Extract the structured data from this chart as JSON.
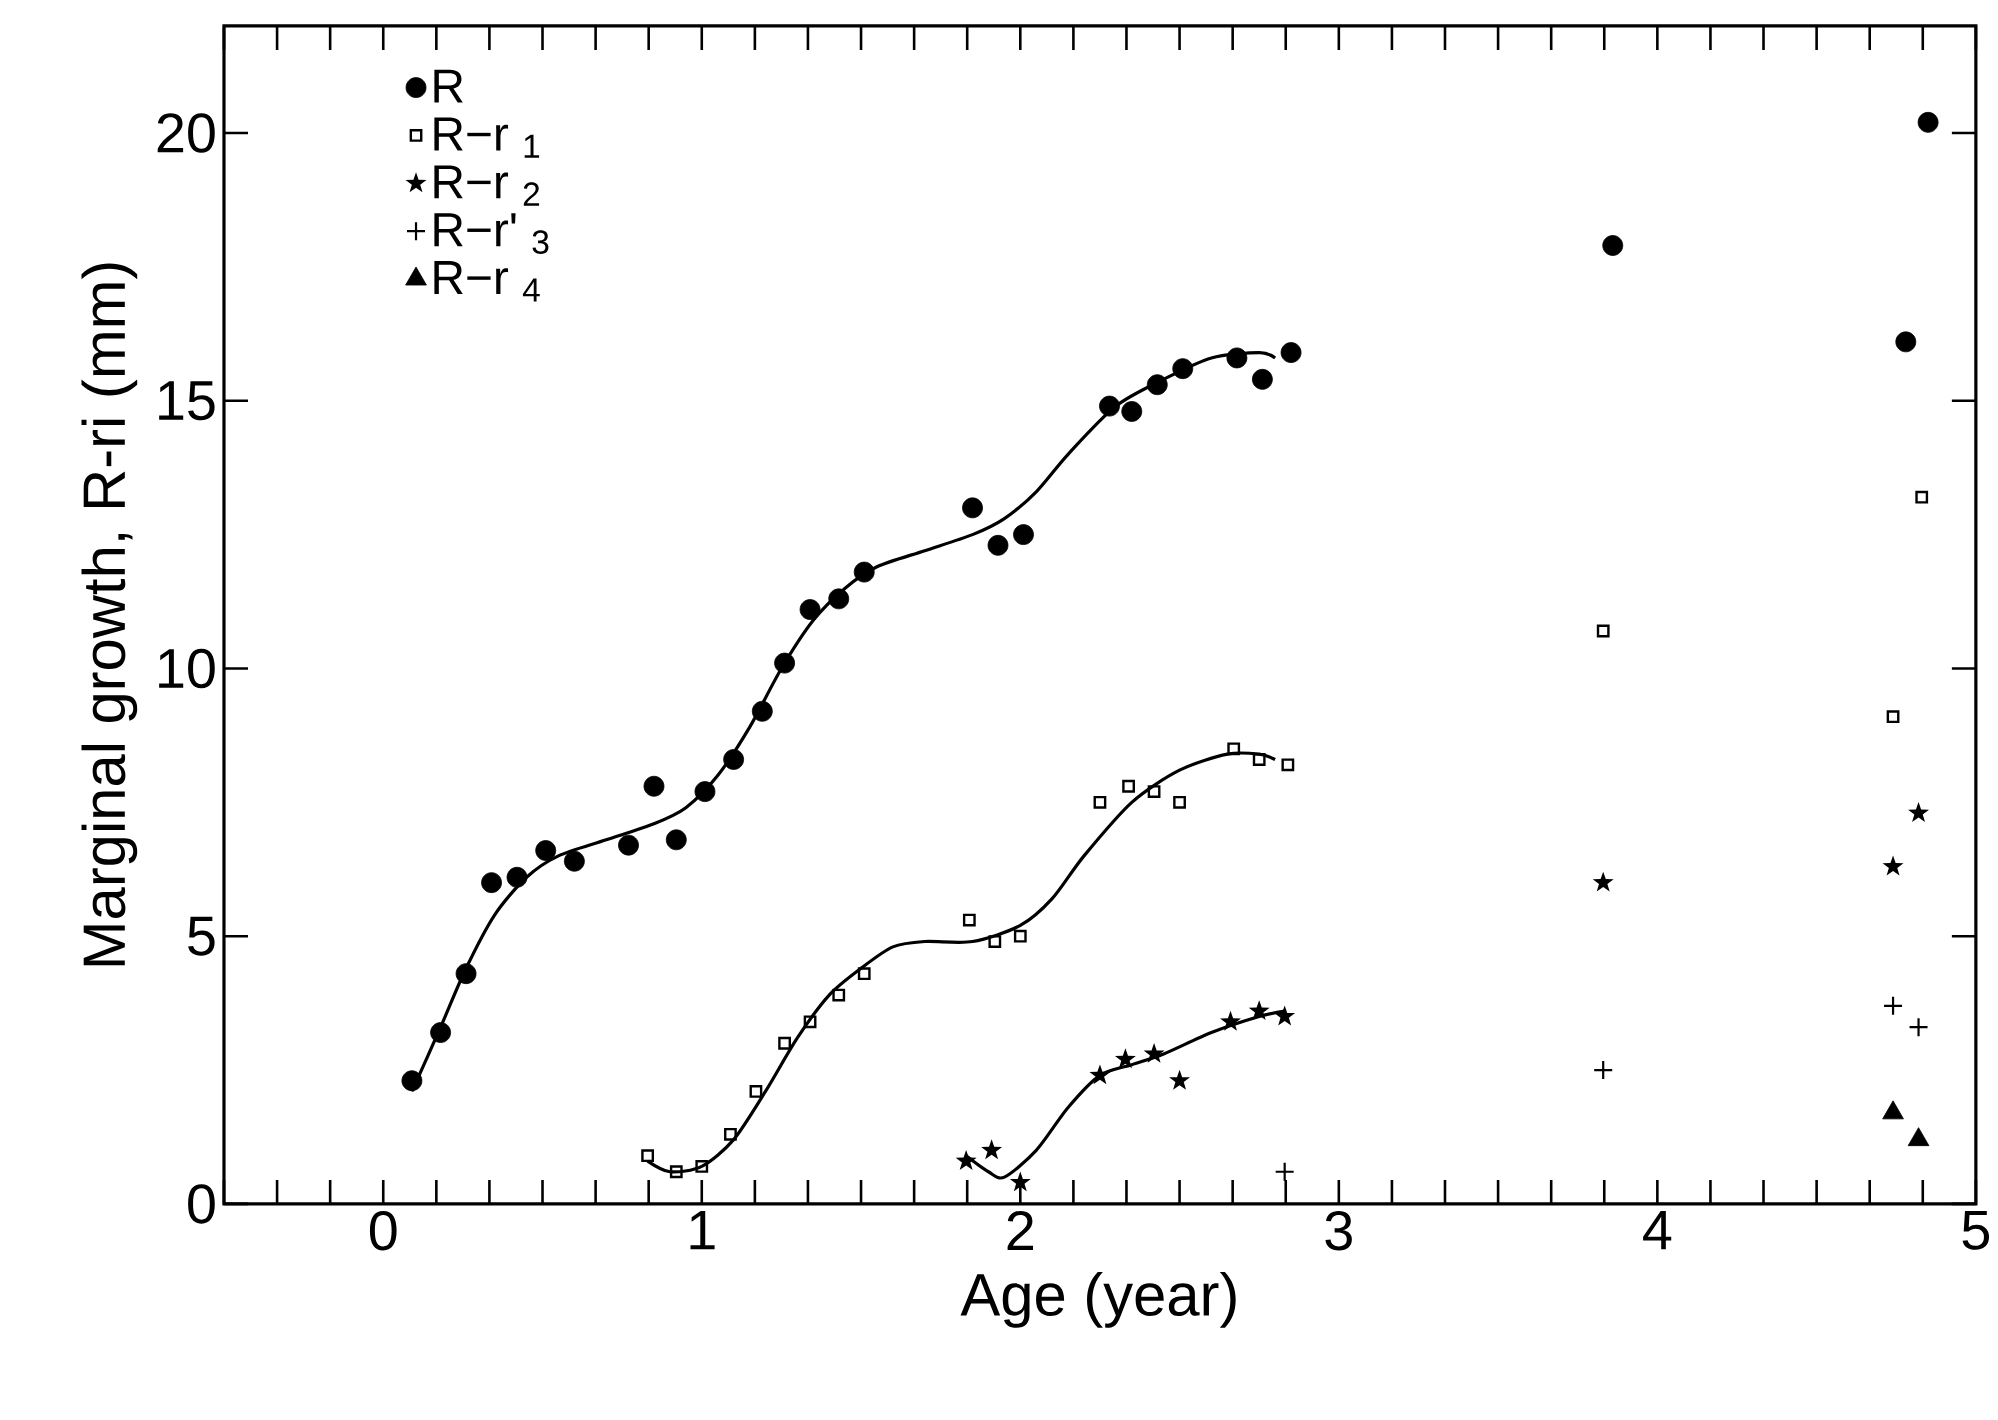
{
  "chart_data": {
    "type": "scatter",
    "xlabel": "Age (year)",
    "ylabel": "Marginal growth, R-ri (mm)",
    "xlim": [
      -0.5,
      5
    ],
    "ylim": [
      0,
      22
    ],
    "xticks": [
      {
        "value": -0.5,
        "label": null
      },
      {
        "value": -0.3333,
        "label": null
      },
      {
        "value": -0.1667,
        "label": null
      },
      0,
      {
        "value": 0.1667,
        "label": null
      },
      {
        "value": 0.3333,
        "label": null
      },
      {
        "value": 0.5,
        "label": null
      },
      {
        "value": 0.6667,
        "label": null
      },
      {
        "value": 0.8333,
        "label": null
      },
      1,
      {
        "value": 1.1667,
        "label": null
      },
      {
        "value": 1.3333,
        "label": null
      },
      {
        "value": 1.5,
        "label": null
      },
      {
        "value": 1.6667,
        "label": null
      },
      {
        "value": 1.8333,
        "label": null
      },
      2,
      {
        "value": 2.1667,
        "label": null
      },
      {
        "value": 2.3333,
        "label": null
      },
      {
        "value": 2.5,
        "label": null
      },
      {
        "value": 2.6667,
        "label": null
      },
      {
        "value": 2.8333,
        "label": null
      },
      3,
      {
        "value": 3.1667,
        "label": null
      },
      {
        "value": 3.3333,
        "label": null
      },
      {
        "value": 3.5,
        "label": null
      },
      {
        "value": 3.6667,
        "label": null
      },
      {
        "value": 3.8333,
        "label": null
      },
      4,
      {
        "value": 4.1667,
        "label": null
      },
      {
        "value": 4.3333,
        "label": null
      },
      {
        "value": 4.5,
        "label": null
      },
      {
        "value": 4.6667,
        "label": null
      },
      {
        "value": 4.8333,
        "label": null
      },
      5
    ],
    "yticks": [
      0,
      5,
      10,
      15,
      20
    ],
    "legend": "top left",
    "series": [
      {
        "name": "R",
        "color": "#000000",
        "marker": "circle",
        "x": [
          0.09,
          0.18,
          0.26,
          0.34,
          0.42,
          0.51,
          0.6,
          0.77,
          0.85,
          0.92,
          1.01,
          1.1,
          1.19,
          1.26,
          1.34,
          1.43,
          1.51,
          1.85,
          1.93,
          2.01,
          2.28,
          2.35,
          2.43,
          2.51,
          2.68,
          2.76,
          2.85,
          3.86,
          4.78,
          4.85
        ],
        "values": [
          2.3,
          3.2,
          4.3,
          6.0,
          6.1,
          6.6,
          6.4,
          6.7,
          7.8,
          6.8,
          7.7,
          8.3,
          9.2,
          10.1,
          11.1,
          11.3,
          11.8,
          13.0,
          12.3,
          12.5,
          14.9,
          14.8,
          15.3,
          15.6,
          15.8,
          15.4,
          15.9,
          17.9,
          16.1,
          20.2
        ]
      },
      {
        "name": "R−r $_{1}$",
        "color": "#000000",
        "marker": "square",
        "x": [
          0.83,
          0.92,
          1.0,
          1.09,
          1.17,
          1.26,
          1.34,
          1.43,
          1.51,
          1.84,
          1.92,
          2.0,
          2.25,
          2.34,
          2.42,
          2.5,
          2.67,
          2.75,
          2.84,
          3.83,
          4.74,
          4.83
        ],
        "values": [
          0.9,
          0.6,
          0.7,
          1.3,
          2.1,
          3.0,
          3.4,
          3.9,
          4.3,
          5.3,
          4.9,
          5.0,
          7.5,
          7.8,
          7.7,
          7.5,
          8.5,
          8.3,
          8.2,
          10.7,
          9.1,
          13.2
        ]
      },
      {
        "name": "R−r $_{2}$",
        "color": "#000000",
        "marker": "star",
        "x": [
          1.83,
          1.91,
          2.0,
          2.25,
          2.33,
          2.42,
          2.5,
          2.66,
          2.75,
          2.83,
          3.83,
          4.74,
          4.82
        ],
        "values": [
          0.8,
          1.0,
          0.4,
          2.4,
          2.7,
          2.8,
          2.3,
          3.4,
          3.6,
          3.5,
          6.0,
          6.3,
          7.3
        ]
      },
      {
        "name": "R−r' $_{3}$",
        "color": "#000000",
        "marker": "cross",
        "x": [
          2.83,
          3.83,
          4.74,
          4.82
        ],
        "values": [
          0.6,
          2.5,
          3.7,
          3.3
        ]
      },
      {
        "name": "R−r $_{4}$",
        "color": "#000000",
        "marker": "triangle",
        "x": [
          4.74,
          4.82
        ],
        "values": [
          1.7,
          1.2
        ]
      },
      {
        "type": "line",
        "color": "#000000",
        "x": [
          0.09,
          0.18,
          0.26,
          0.35,
          0.45,
          0.55,
          0.7,
          0.85,
          0.95,
          1.05,
          1.15,
          1.25,
          1.35,
          1.45,
          1.55,
          1.7,
          1.85,
          1.95,
          2.05,
          2.15,
          2.3,
          2.45,
          2.6,
          2.75,
          2.8
        ],
        "values": [
          2.1,
          3.3,
          4.4,
          5.4,
          6.1,
          6.5,
          6.8,
          7.1,
          7.4,
          8.0,
          8.9,
          10.0,
          10.9,
          11.5,
          11.9,
          12.2,
          12.5,
          12.8,
          13.3,
          14.0,
          14.9,
          15.4,
          15.8,
          15.9,
          15.8
        ]
      },
      {
        "type": "line",
        "color": "#000000",
        "x": [
          0.83,
          0.9,
          1.0,
          1.1,
          1.2,
          1.3,
          1.4,
          1.5,
          1.6,
          1.7,
          1.85,
          2.0,
          2.1,
          2.2,
          2.35,
          2.5,
          2.65,
          2.75,
          2.8
        ],
        "values": [
          0.8,
          0.6,
          0.7,
          1.2,
          2.1,
          3.1,
          3.9,
          4.4,
          4.8,
          4.9,
          4.9,
          5.2,
          5.7,
          6.5,
          7.5,
          8.1,
          8.4,
          8.4,
          8.3
        ]
      },
      {
        "type": "line",
        "color": "#000000",
        "x": [
          1.83,
          1.9,
          1.95,
          2.05,
          2.15,
          2.25,
          2.35,
          2.45,
          2.6,
          2.75,
          2.83
        ],
        "values": [
          0.9,
          0.6,
          0.5,
          1.0,
          1.8,
          2.4,
          2.6,
          2.8,
          3.2,
          3.5,
          3.6
        ]
      }
    ]
  }
}
